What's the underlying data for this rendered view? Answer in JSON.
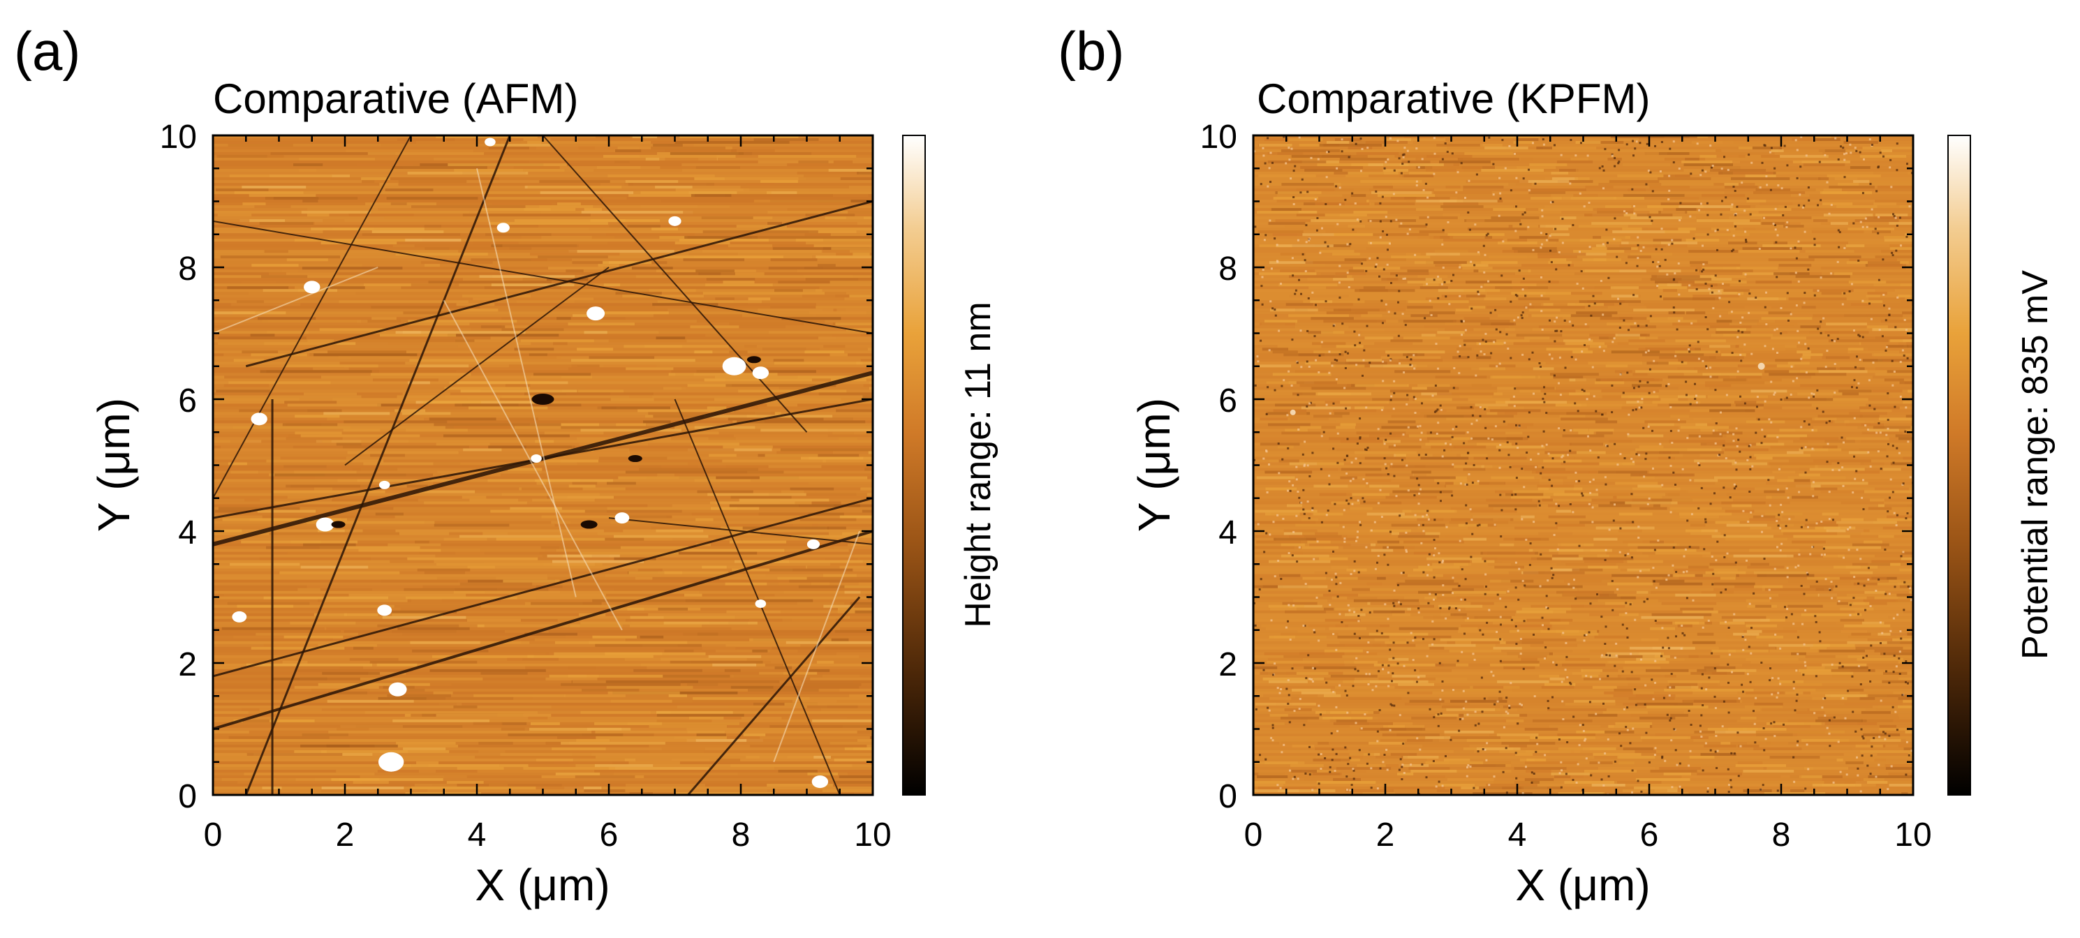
{
  "chart_data": [
    {
      "type": "heatmap",
      "panel_label": "(a)",
      "title": "Comparative (AFM)",
      "xlabel": "X (μm)",
      "ylabel": "Y (μm)",
      "xlim": [
        0,
        10
      ],
      "ylim": [
        0,
        10
      ],
      "x_ticks": [
        "0",
        "2",
        "4",
        "6",
        "8",
        "10"
      ],
      "y_ticks": [
        "0",
        "2",
        "4",
        "6",
        "8",
        "10"
      ],
      "colorbar_label": "Height range: 11 nm",
      "texture": "scratched",
      "colormap": [
        "#000000",
        "#4a2608",
        "#9a5416",
        "#d07a28",
        "#e9a23a",
        "#f3cd92",
        "#ffffff"
      ]
    },
    {
      "type": "heatmap",
      "panel_label": "(b)",
      "title": "Comparative (KPFM)",
      "xlabel": "X (μm)",
      "ylabel": "Y (μm)",
      "xlim": [
        0,
        10
      ],
      "ylim": [
        0,
        10
      ],
      "x_ticks": [
        "0",
        "2",
        "4",
        "6",
        "8",
        "10"
      ],
      "y_ticks": [
        "0",
        "2",
        "4",
        "6",
        "8",
        "10"
      ],
      "colorbar_label": "Potential range: 835 mV",
      "texture": "uniform-noise",
      "colormap": [
        "#000000",
        "#4a2608",
        "#9a5416",
        "#d07a28",
        "#e9a23a",
        "#f3cd92",
        "#ffffff"
      ]
    }
  ]
}
